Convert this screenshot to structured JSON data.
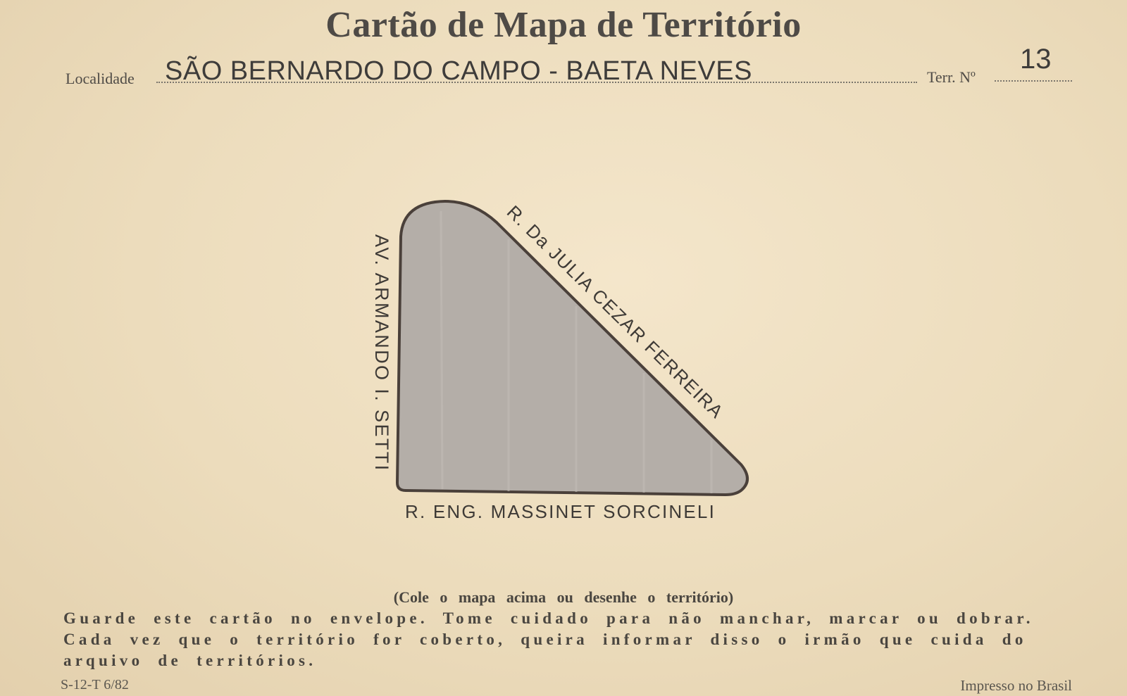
{
  "card": {
    "title": "Cartão de Mapa de Território",
    "locality_label": "Localidade",
    "locality_value": "SÃO BERNARDO DO CAMPO - BAETA NEVES",
    "territory_label": "Terr. Nº",
    "territory_number": "13"
  },
  "map": {
    "street_left": "AV. ARMANDO I. SETTI",
    "street_diagonal": "R. Da JULIA CEZAR FERREIRA",
    "street_bottom": "R. ENG. MASSINET SORCINELI",
    "fill_color": "#b4aea8",
    "outline_color": "#4a403a"
  },
  "footer": {
    "hint": "(Cole o mapa acima ou desenhe o território)",
    "instructions": "Guarde este cartão no envelope. Tome cuidado para não manchar, marcar ou dobrar. Cada vez que o território for coberto, queira informar disso o irmão que cuida do arquivo de territórios.",
    "form_code": "S-12-T 6/82",
    "printed": "Impresso no Brasil"
  }
}
